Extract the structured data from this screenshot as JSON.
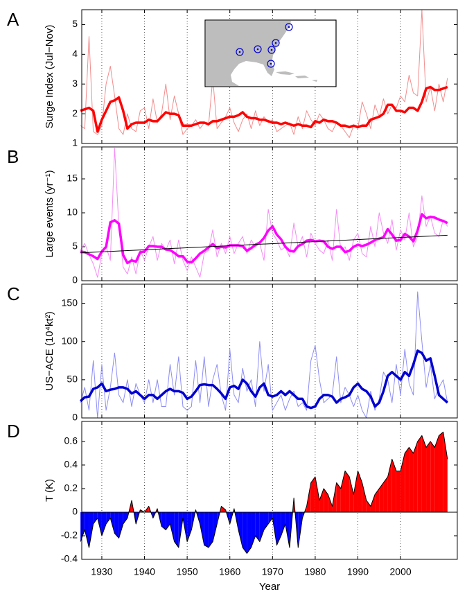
{
  "chart_data": [
    {
      "type": "line",
      "panel_label": "A",
      "ylabel": "Surge Index (Jul−Nov)",
      "xlim": [
        1925.3,
        2013.3
      ],
      "ylim": [
        1,
        5.5
      ],
      "yticks": [
        1,
        2,
        3,
        4,
        5
      ],
      "xticks": [
        1930,
        1940,
        1950,
        1960,
        1970,
        1980,
        1990,
        2000
      ],
      "xtick_labels": false,
      "grid": "x",
      "x": [
        1925,
        1926,
        1927,
        1928,
        1929,
        1930,
        1931,
        1932,
        1933,
        1934,
        1935,
        1936,
        1937,
        1938,
        1939,
        1940,
        1941,
        1942,
        1943,
        1944,
        1945,
        1946,
        1947,
        1948,
        1949,
        1950,
        1951,
        1952,
        1953,
        1954,
        1955,
        1956,
        1957,
        1958,
        1959,
        1960,
        1961,
        1962,
        1963,
        1964,
        1965,
        1966,
        1967,
        1968,
        1969,
        1970,
        1971,
        1972,
        1973,
        1974,
        1975,
        1976,
        1977,
        1978,
        1979,
        1980,
        1981,
        1982,
        1983,
        1984,
        1985,
        1986,
        1987,
        1988,
        1989,
        1990,
        1991,
        1992,
        1993,
        1994,
        1995,
        1996,
        1997,
        1998,
        1999,
        2000,
        2001,
        2002,
        2003,
        2004,
        2005,
        2006,
        2007,
        2008,
        2009,
        2010,
        2011
      ],
      "series": [
        {
          "color": "#f28c8c",
          "values": [
            1.6,
            1.5,
            4.6,
            1.4,
            1.3,
            1.6,
            3.0,
            3.6,
            2.6,
            1.5,
            1.3,
            2.0,
            1.5,
            1.4,
            2.1,
            2.2,
            1.5,
            2.5,
            1.7,
            2.0,
            3.0,
            1.8,
            2.6,
            2.0,
            1.3,
            1.5,
            1.6,
            1.8,
            1.5,
            1.7,
            1.6,
            3.2,
            1.5,
            1.7,
            1.9,
            2.2,
            1.7,
            1.4,
            1.8,
            2.0,
            1.5,
            2.1,
            1.6,
            1.9,
            1.7,
            1.8,
            1.4,
            1.5,
            1.6,
            1.7,
            1.3,
            1.9,
            1.5,
            2.1,
            1.8,
            1.6,
            2.0,
            1.8,
            1.5,
            1.4,
            1.7,
            1.6,
            1.4,
            1.2,
            1.6,
            1.5,
            2.4,
            2.0,
            1.5,
            2.3,
            1.9,
            2.5,
            2.0,
            2.3,
            2.2,
            2.6,
            2.4,
            3.3,
            2.7,
            2.6,
            5.5,
            2.4,
            2.9,
            2.1,
            3.0,
            2.4,
            3.2
          ]
        },
        {
          "color": "#ff0000",
          "values": [
            2.1,
            2.15,
            2.2,
            2.1,
            1.4,
            1.8,
            2.1,
            2.4,
            2.45,
            2.55,
            2.1,
            1.5,
            1.65,
            1.7,
            1.7,
            1.7,
            1.8,
            1.75,
            1.75,
            1.9,
            2.05,
            2.0,
            2.0,
            1.95,
            1.6,
            1.6,
            1.6,
            1.65,
            1.7,
            1.7,
            1.65,
            1.75,
            1.75,
            1.8,
            1.85,
            1.9,
            1.9,
            1.95,
            2.05,
            1.9,
            1.85,
            1.85,
            1.8,
            1.8,
            1.75,
            1.7,
            1.7,
            1.65,
            1.7,
            1.65,
            1.6,
            1.65,
            1.6,
            1.6,
            1.55,
            1.75,
            1.7,
            1.8,
            1.75,
            1.75,
            1.7,
            1.6,
            1.6,
            1.55,
            1.6,
            1.55,
            1.6,
            1.6,
            1.8,
            1.85,
            1.9,
            2.0,
            2.3,
            2.3,
            2.1,
            2.1,
            2.05,
            2.2,
            2.2,
            2.1,
            2.4,
            2.85,
            2.9,
            2.8,
            2.8,
            2.85,
            2.9
          ]
        }
      ]
    },
    {
      "type": "line",
      "panel_label": "B",
      "ylabel": "Large events (yr⁻¹)",
      "xlim": [
        1925.3,
        2013.3
      ],
      "ylim": [
        0,
        19.7
      ],
      "yticks": [
        0,
        5,
        10,
        15
      ],
      "xticks": [
        1930,
        1940,
        1950,
        1960,
        1970,
        1980,
        1990,
        2000
      ],
      "xtick_labels": false,
      "grid": "x",
      "x": [
        1925,
        1926,
        1927,
        1928,
        1929,
        1930,
        1931,
        1932,
        1933,
        1934,
        1935,
        1936,
        1937,
        1938,
        1939,
        1940,
        1941,
        1942,
        1943,
        1944,
        1945,
        1946,
        1947,
        1948,
        1949,
        1950,
        1951,
        1952,
        1953,
        1954,
        1955,
        1956,
        1957,
        1958,
        1959,
        1960,
        1961,
        1962,
        1963,
        1964,
        1965,
        1966,
        1967,
        1968,
        1969,
        1970,
        1971,
        1972,
        1973,
        1974,
        1975,
        1976,
        1977,
        1978,
        1979,
        1980,
        1981,
        1982,
        1983,
        1984,
        1985,
        1986,
        1987,
        1988,
        1989,
        1990,
        1991,
        1992,
        1993,
        1994,
        1995,
        1996,
        1997,
        1998,
        1999,
        2000,
        2001,
        2002,
        2003,
        2004,
        2005,
        2006,
        2007,
        2008,
        2009,
        2010,
        2011
      ],
      "series": [
        {
          "color": "#f48cf4",
          "values": [
            4.5,
            5.5,
            3.8,
            2.5,
            0.5,
            4.0,
            5.0,
            3.0,
            19.5,
            8.0,
            2.0,
            1.0,
            3.5,
            1.0,
            4.5,
            3.0,
            5.0,
            6.5,
            3.0,
            5.5,
            4.5,
            6.0,
            2.5,
            6.0,
            3.0,
            1.5,
            3.5,
            2.0,
            0.5,
            4.0,
            4.5,
            7.5,
            3.5,
            5.5,
            4.0,
            6.5,
            4.0,
            5.5,
            6.5,
            4.0,
            6.0,
            5.0,
            5.5,
            3.0,
            10.5,
            7.0,
            6.0,
            4.5,
            5.0,
            3.5,
            8.5,
            5.0,
            6.5,
            3.5,
            7.0,
            5.5,
            4.5,
            4.0,
            6.0,
            3.0,
            10.5,
            4.5,
            5.0,
            3.0,
            6.0,
            7.0,
            4.0,
            3.5,
            8.0,
            5.0,
            10.0,
            7.0,
            5.5,
            9.0,
            4.5,
            7.5,
            6.0,
            10.0,
            5.0,
            6.5,
            12.5,
            8.0,
            9.5,
            7.0,
            6.5,
            9.0,
            8.0
          ]
        },
        {
          "color": "#ff00ff",
          "values": [
            4.3,
            4.2,
            3.9,
            3.6,
            3.2,
            4.3,
            5.0,
            8.6,
            8.9,
            8.4,
            3.8,
            2.6,
            3.0,
            2.8,
            4.2,
            4.3,
            5.1,
            5.1,
            5.0,
            5.0,
            4.6,
            4.5,
            4.1,
            3.6,
            3.6,
            2.8,
            2.7,
            3.3,
            4.0,
            4.4,
            4.9,
            5.4,
            4.8,
            5.0,
            4.9,
            5.2,
            5.2,
            5.2,
            5.1,
            4.4,
            4.8,
            5.3,
            5.6,
            6.3,
            7.4,
            8.0,
            6.8,
            6.1,
            5.0,
            4.4,
            4.3,
            5.1,
            5.4,
            5.9,
            6.0,
            5.8,
            5.9,
            5.8,
            5.0,
            4.7,
            5.0,
            5.0,
            4.2,
            4.4,
            5.0,
            5.3,
            5.1,
            5.3,
            5.6,
            6.0,
            6.2,
            6.4,
            7.6,
            6.8,
            5.9,
            6.0,
            6.9,
            6.5,
            5.8,
            7.4,
            9.8,
            9.2,
            9.4,
            9.3,
            9.0,
            8.8,
            8.5
          ]
        }
      ],
      "trend": {
        "color": "#000000",
        "x": [
          1925,
          2011
        ],
        "values": [
          4.1,
          6.7
        ]
      }
    },
    {
      "type": "line",
      "panel_label": "C",
      "ylabel": "US−ACE (10⁴kt²)",
      "xlim": [
        1925.3,
        2013.3
      ],
      "ylim": [
        0,
        175
      ],
      "yticks": [
        0,
        50,
        100,
        150
      ],
      "xticks": [
        1930,
        1940,
        1950,
        1960,
        1970,
        1980,
        1990,
        2000
      ],
      "xtick_labels": false,
      "grid": "x",
      "x": [
        1925,
        1926,
        1927,
        1928,
        1929,
        1930,
        1931,
        1932,
        1933,
        1934,
        1935,
        1936,
        1937,
        1938,
        1939,
        1940,
        1941,
        1942,
        1943,
        1944,
        1945,
        1946,
        1947,
        1948,
        1949,
        1950,
        1951,
        1952,
        1953,
        1954,
        1955,
        1956,
        1957,
        1958,
        1959,
        1960,
        1961,
        1962,
        1963,
        1964,
        1965,
        1966,
        1967,
        1968,
        1969,
        1970,
        1971,
        1972,
        1973,
        1974,
        1975,
        1976,
        1977,
        1978,
        1979,
        1980,
        1981,
        1982,
        1983,
        1984,
        1985,
        1986,
        1987,
        1988,
        1989,
        1990,
        1991,
        1992,
        1993,
        1994,
        1995,
        1996,
        1997,
        1998,
        1999,
        2000,
        2001,
        2002,
        2003,
        2004,
        2005,
        2006,
        2007,
        2008,
        2009,
        2010,
        2011
      ],
      "series": [
        {
          "color": "#8c8cf4",
          "values": [
            20,
            40,
            10,
            75,
            0,
            70,
            10,
            40,
            85,
            30,
            20,
            50,
            15,
            45,
            30,
            20,
            50,
            20,
            50,
            15,
            15,
            70,
            30,
            80,
            15,
            10,
            15,
            75,
            20,
            80,
            15,
            50,
            70,
            30,
            10,
            90,
            30,
            20,
            65,
            35,
            50,
            15,
            100,
            35,
            70,
            10,
            20,
            30,
            10,
            25,
            35,
            15,
            20,
            10,
            75,
            95,
            50,
            20,
            25,
            30,
            80,
            20,
            40,
            30,
            15,
            30,
            10,
            0,
            35,
            10,
            25,
            60,
            50,
            20,
            70,
            30,
            90,
            45,
            30,
            165,
            100,
            40,
            70,
            25,
            40,
            50,
            20
          ]
        },
        {
          "color": "#0000d0",
          "values": [
            22,
            27,
            28,
            38,
            40,
            45,
            35,
            37,
            38,
            40,
            40,
            38,
            32,
            35,
            30,
            25,
            30,
            30,
            25,
            30,
            35,
            38,
            35,
            35,
            33,
            25,
            28,
            35,
            43,
            44,
            43,
            43,
            38,
            32,
            25,
            40,
            42,
            38,
            50,
            45,
            35,
            28,
            40,
            45,
            30,
            28,
            30,
            35,
            30,
            35,
            30,
            25,
            25,
            15,
            13,
            15,
            25,
            30,
            30,
            28,
            20,
            25,
            27,
            30,
            40,
            45,
            38,
            35,
            28,
            15,
            20,
            35,
            55,
            60,
            55,
            50,
            60,
            55,
            70,
            88,
            85,
            75,
            78,
            55,
            30,
            25,
            20
          ]
        }
      ]
    },
    {
      "type": "area",
      "panel_label": "D",
      "ylabel": "T (K)",
      "xlabel": "Year",
      "xlim": [
        1925.3,
        2013.3
      ],
      "ylim": [
        -0.4,
        0.77
      ],
      "yticks": [
        -0.4,
        -0.2,
        0,
        0.2,
        0.4,
        0.6
      ],
      "xticks": [
        1930,
        1940,
        1950,
        1960,
        1970,
        1980,
        1990,
        2000
      ],
      "xtick_labels": true,
      "grid": "x",
      "positive_color": "#ff0000",
      "negative_color": "#0000ff",
      "line_color": "#000000",
      "x": [
        1925,
        1926,
        1927,
        1928,
        1929,
        1930,
        1931,
        1932,
        1933,
        1934,
        1935,
        1936,
        1937,
        1938,
        1939,
        1940,
        1941,
        1942,
        1943,
        1944,
        1945,
        1946,
        1947,
        1948,
        1949,
        1950,
        1951,
        1952,
        1953,
        1954,
        1955,
        1956,
        1957,
        1958,
        1959,
        1960,
        1961,
        1962,
        1963,
        1964,
        1965,
        1966,
        1967,
        1968,
        1969,
        1970,
        1971,
        1972,
        1973,
        1974,
        1975,
        1976,
        1977,
        1978,
        1979,
        1980,
        1981,
        1982,
        1983,
        1984,
        1985,
        1986,
        1987,
        1988,
        1989,
        1990,
        1991,
        1992,
        1993,
        1994,
        1995,
        1996,
        1997,
        1998,
        1999,
        2000,
        2001,
        2002,
        2003,
        2004,
        2005,
        2006,
        2007,
        2008,
        2009,
        2010,
        2011
      ],
      "values": [
        -0.25,
        -0.15,
        -0.3,
        -0.1,
        -0.05,
        -0.2,
        -0.1,
        -0.05,
        -0.18,
        -0.22,
        -0.1,
        -0.05,
        0.1,
        -0.1,
        0.02,
        0.0,
        0.05,
        -0.05,
        0.03,
        -0.12,
        -0.15,
        -0.1,
        -0.25,
        -0.3,
        -0.05,
        -0.25,
        -0.15,
        0.02,
        -0.1,
        -0.28,
        -0.3,
        -0.25,
        -0.1,
        0.05,
        0.02,
        -0.1,
        0.03,
        -0.15,
        -0.3,
        -0.35,
        -0.3,
        -0.2,
        -0.25,
        -0.15,
        -0.1,
        -0.05,
        -0.28,
        -0.2,
        -0.1,
        -0.3,
        0.12,
        -0.3,
        -0.05,
        0.05,
        0.25,
        0.3,
        0.1,
        0.2,
        0.15,
        0.05,
        0.25,
        0.2,
        0.35,
        0.3,
        0.15,
        0.35,
        0.25,
        0.1,
        0.05,
        0.15,
        0.2,
        0.25,
        0.3,
        0.45,
        0.35,
        0.35,
        0.5,
        0.55,
        0.5,
        0.6,
        0.65,
        0.55,
        0.6,
        0.55,
        0.65,
        0.68,
        0.45
      ]
    }
  ]
}
